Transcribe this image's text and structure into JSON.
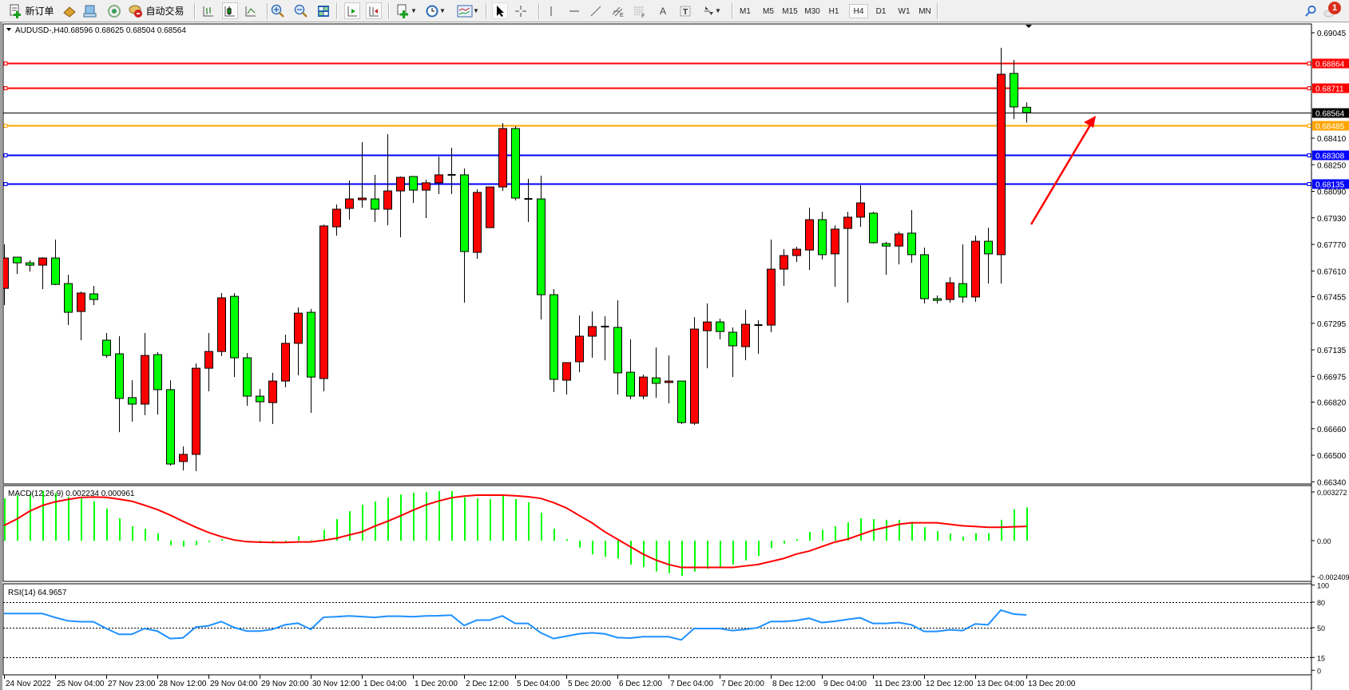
{
  "toolbar": {
    "new_order_label": "新订单",
    "auto_trade_label": "自动交易",
    "timeframes": [
      "M1",
      "M5",
      "M15",
      "M30",
      "H1",
      "H4",
      "D1",
      "W1",
      "MN"
    ],
    "active_timeframe": "H4",
    "fibo_channel_letter": "E",
    "fibo_letter": "F",
    "text_tool_letter": "A",
    "text_label_letter": "T",
    "notification_count": "1"
  },
  "chart": {
    "symbol_header": "AUDUSD-,H4",
    "ohlc_header": "0.68596 0.68625 0.68504 0.68564"
  },
  "chart_data": {
    "type": "candlestick",
    "bull_color": "#ff0000",
    "bear_color": "#00ff00",
    "candles_ohlc": [
      [
        0.67505,
        0.6777,
        0.67404,
        0.67688
      ],
      [
        0.67693,
        0.67693,
        0.67592,
        0.67659
      ],
      [
        0.67659,
        0.67674,
        0.67606,
        0.67645
      ],
      [
        0.67645,
        0.67693,
        0.67501,
        0.67688
      ],
      [
        0.67688,
        0.67799,
        0.67525,
        0.67529
      ],
      [
        0.67534,
        0.67587,
        0.67284,
        0.67361
      ],
      [
        0.67366,
        0.67486,
        0.67193,
        0.67477
      ],
      [
        0.67472,
        0.6752,
        0.67404,
        0.67438
      ],
      [
        0.67193,
        0.67236,
        0.67087,
        0.67101
      ],
      [
        0.67111,
        0.67217,
        0.66639,
        0.66842
      ],
      [
        0.66847,
        0.66952,
        0.66702,
        0.66808
      ],
      [
        0.66808,
        0.67236,
        0.66741,
        0.67101
      ],
      [
        0.67106,
        0.67121,
        0.66745,
        0.66895
      ],
      [
        0.66895,
        0.66952,
        0.66437,
        0.66447
      ],
      [
        0.66462,
        0.66553,
        0.66409,
        0.66505
      ],
      [
        0.66505,
        0.67053,
        0.66404,
        0.67024
      ],
      [
        0.67024,
        0.67236,
        0.66885,
        0.67125
      ],
      [
        0.67125,
        0.67477,
        0.67097,
        0.67448
      ],
      [
        0.67457,
        0.67477,
        0.66971,
        0.67087
      ],
      [
        0.67087,
        0.67116,
        0.66798,
        0.66856
      ],
      [
        0.66856,
        0.66899,
        0.66702,
        0.66822
      ],
      [
        0.66817,
        0.66996,
        0.66688,
        0.66947
      ],
      [
        0.66947,
        0.67226,
        0.66909,
        0.67174
      ],
      [
        0.67174,
        0.6739,
        0.66981,
        0.67356
      ],
      [
        0.67361,
        0.67381,
        0.66755,
        0.66971
      ],
      [
        0.66962,
        0.6789,
        0.66885,
        0.67881
      ],
      [
        0.67876,
        0.68011,
        0.67823,
        0.67982
      ],
      [
        0.67987,
        0.68155,
        0.67919,
        0.68044
      ],
      [
        0.68039,
        0.68386,
        0.67991,
        0.68049
      ],
      [
        0.68044,
        0.68189,
        0.67905,
        0.67982
      ],
      [
        0.67982,
        0.68434,
        0.67885,
        0.68092
      ],
      [
        0.68092,
        0.68179,
        0.67813,
        0.68174
      ],
      [
        0.68179,
        0.68179,
        0.6802,
        0.68097
      ],
      [
        0.68097,
        0.6816,
        0.67929,
        0.68141
      ],
      [
        0.68141,
        0.68299,
        0.68073,
        0.68189
      ],
      [
        0.68189,
        0.68352,
        0.68073,
        0.68189
      ],
      [
        0.68189,
        0.68227,
        0.67419,
        0.67727
      ],
      [
        0.67722,
        0.68102,
        0.67683,
        0.68083
      ],
      [
        0.67871,
        0.68116,
        0.67871,
        0.68116
      ],
      [
        0.68116,
        0.68501,
        0.68092,
        0.68468
      ],
      [
        0.68468,
        0.68482,
        0.68035,
        0.68049
      ],
      [
        0.68044,
        0.68165,
        0.67905,
        0.68044
      ],
      [
        0.68044,
        0.68184,
        0.67318,
        0.67467
      ],
      [
        0.67467,
        0.67501,
        0.6688,
        0.66957
      ],
      [
        0.66952,
        0.67058,
        0.66866,
        0.67058
      ],
      [
        0.67063,
        0.67342,
        0.67,
        0.67217
      ],
      [
        0.67217,
        0.67366,
        0.67087,
        0.67275
      ],
      [
        0.67275,
        0.67337,
        0.67072,
        0.67275
      ],
      [
        0.6727,
        0.67433,
        0.66866,
        0.66996
      ],
      [
        0.67,
        0.67198,
        0.66837,
        0.66856
      ],
      [
        0.66856,
        0.66986,
        0.66837,
        0.66971
      ],
      [
        0.66966,
        0.67149,
        0.66846,
        0.66933
      ],
      [
        0.66938,
        0.67101,
        0.66813,
        0.66947
      ],
      [
        0.66947,
        0.66947,
        0.66688,
        0.66697
      ],
      [
        0.66693,
        0.67332,
        0.66683,
        0.6726
      ],
      [
        0.6725,
        0.67414,
        0.67024,
        0.67303
      ],
      [
        0.67303,
        0.67323,
        0.67198,
        0.67245
      ],
      [
        0.67241,
        0.6727,
        0.66971,
        0.67159
      ],
      [
        0.67154,
        0.67376,
        0.67072,
        0.67289
      ],
      [
        0.67284,
        0.67313,
        0.67111,
        0.67284
      ],
      [
        0.67284,
        0.67799,
        0.67241,
        0.67621
      ],
      [
        0.67621,
        0.67741,
        0.6752,
        0.67703
      ],
      [
        0.67703,
        0.67756,
        0.67664,
        0.67741
      ],
      [
        0.67736,
        0.67991,
        0.67616,
        0.67919
      ],
      [
        0.67919,
        0.67967,
        0.67679,
        0.67708
      ],
      [
        0.67713,
        0.67885,
        0.67515,
        0.67862
      ],
      [
        0.67866,
        0.67967,
        0.67419,
        0.67934
      ],
      [
        0.67934,
        0.68126,
        0.67876,
        0.6802
      ],
      [
        0.67958,
        0.67967,
        0.67775,
        0.6778
      ],
      [
        0.67775,
        0.67785,
        0.67587,
        0.6776
      ],
      [
        0.6776,
        0.67847,
        0.6765,
        0.67833
      ],
      [
        0.67838,
        0.67977,
        0.67659,
        0.67708
      ],
      [
        0.67708,
        0.67751,
        0.67414,
        0.67443
      ],
      [
        0.67443,
        0.67462,
        0.67414,
        0.67433
      ],
      [
        0.67438,
        0.67573,
        0.67419,
        0.67539
      ],
      [
        0.67534,
        0.6777,
        0.67419,
        0.67453
      ],
      [
        0.67453,
        0.67823,
        0.67424,
        0.67789
      ],
      [
        0.67789,
        0.67871,
        0.67534,
        0.67713
      ],
      [
        0.67708,
        0.68954,
        0.67534,
        0.68795
      ],
      [
        0.688,
        0.68881,
        0.68525,
        0.68598
      ],
      [
        0.68596,
        0.68625,
        0.68504,
        0.68564
      ]
    ],
    "price_axis_ticks": [
      "0.69045",
      "0.68410",
      "0.68250",
      "0.68090",
      "0.67930",
      "0.67770",
      "0.67610",
      "0.67455",
      "0.67295",
      "0.67135",
      "0.66975",
      "0.66820",
      "0.66660",
      "0.66500",
      "0.66340"
    ],
    "levels": [
      {
        "price": "0.68864",
        "color": "#ff0000"
      },
      {
        "price": "0.68711",
        "color": "#ff0000"
      },
      {
        "price": "0.68485",
        "color": "#ffa500"
      },
      {
        "price": "0.68308",
        "color": "#0000ff"
      },
      {
        "price": "0.68135",
        "color": "#0000ff"
      }
    ],
    "bid": {
      "price": "0.68564",
      "color": "#000000"
    },
    "arrow_color": "#ff0000",
    "x_labels": [
      "24 Nov 2022",
      "25 Nov 04:00",
      "27 Nov 23:00",
      "28 Nov 12:00",
      "29 Nov 04:00",
      "29 Nov 20:00",
      "30 Nov 12:00",
      "1 Dec 04:00",
      "1 Dec 20:00",
      "2 Dec 12:00",
      "5 Dec 04:00",
      "5 Dec 20:00",
      "6 Dec 12:00",
      "7 Dec 04:00",
      "7 Dec 20:00",
      "8 Dec 12:00",
      "9 Dec 04:00",
      "11 Dec 23:00",
      "12 Dec 12:00",
      "13 Dec 04:00",
      "13 Dec 20:00"
    ],
    "macd": {
      "label": "MACD(12,26,9) 0.002234 0.000961",
      "histogram_color": "#00ff00",
      "signal_color": "#ff0000",
      "axis_labels": [
        "0.003272",
        "0.00",
        "-0.002409"
      ],
      "histogram": [
        0.00284,
        0.00306,
        0.00313,
        0.00335,
        0.00319,
        0.00295,
        0.00283,
        0.00263,
        0.00215,
        0.0015,
        0.00097,
        0.0008,
        0.00048,
        -0.0003,
        -0.0004,
        -0.0003,
        -0.0001,
        0.0001,
        3e-05,
        -0.0001,
        -0.0001,
        -0.0001,
        -0.0001,
        0.0003,
        5e-05,
        0.00073,
        0.00145,
        0.00198,
        0.00241,
        0.00263,
        0.0029,
        0.0031,
        0.00322,
        0.00327,
        0.00333,
        0.00333,
        0.00291,
        0.00284,
        0.00279,
        0.003,
        0.00279,
        0.00257,
        0.00188,
        0.0008,
        0.0001,
        -0.00046,
        -0.00092,
        -0.00109,
        -0.0012,
        -0.00161,
        -0.00178,
        -0.00207,
        -0.00218,
        -0.00236,
        -0.00207,
        -0.00189,
        -0.00178,
        -0.00161,
        -0.00132,
        -0.00103,
        -0.0005,
        -0.0002,
        0.0001,
        0.00059,
        0.00073,
        0.00097,
        0.00123,
        0.0015,
        0.00145,
        0.0014,
        0.0014,
        0.00127,
        0.00091,
        0.00064,
        0.00048,
        0.00027,
        0.0005,
        0.0005,
        0.0014,
        0.0021,
        0.002234
      ],
      "signal": [
        0.00102,
        0.00145,
        0.00198,
        0.00236,
        0.00261,
        0.00277,
        0.0029,
        0.00293,
        0.00291,
        0.00279,
        0.00265,
        0.00238,
        0.00209,
        0.00172,
        0.0013,
        0.00091,
        0.00055,
        0.00027,
        5e-05,
        -7e-05,
        -0.0001,
        -0.00012,
        -0.00012,
        -9e-05,
        -9e-05,
        2e-05,
        0.00016,
        0.00038,
        0.00059,
        0.00097,
        0.0013,
        0.00166,
        0.00204,
        0.0024,
        0.00266,
        0.00288,
        0.00299,
        0.00306,
        0.00306,
        0.00306,
        0.00302,
        0.00295,
        0.00284,
        0.00256,
        0.0022,
        0.0017,
        0.0012,
        0.0006,
        0.0001,
        -0.0004,
        -0.0009,
        -0.0013,
        -0.0016,
        -0.0018,
        -0.0018,
        -0.0018,
        -0.0018,
        -0.0018,
        -0.0017,
        -0.0016,
        -0.0014,
        -0.0012,
        -0.0009,
        -0.0007,
        -0.0004,
        -0.0001,
        0.0001,
        0.0004,
        0.0007,
        0.0009,
        0.0011,
        0.0012,
        0.0012,
        0.0012,
        0.0011,
        0.001,
        0.00095,
        0.0009,
        0.0009,
        0.00093,
        0.000961
      ]
    },
    "rsi": {
      "label": "RSI(14) 64.9657",
      "color": "#1e90ff",
      "levels": [
        80,
        50,
        15
      ],
      "axis_labels": [
        "100",
        "80",
        "50",
        "15",
        "0"
      ],
      "values": [
        66.6,
        66.6,
        66.6,
        66.6,
        62,
        58,
        57,
        57,
        49,
        42.2,
        42.2,
        49,
        46,
        37.2,
        38,
        50.6,
        52.2,
        57.2,
        50.3,
        46,
        46,
        48,
        53.4,
        55.3,
        48,
        62.2,
        62.8,
        63.8,
        63,
        62,
        63.4,
        63.4,
        62.8,
        63.8,
        64,
        64.7,
        52.5,
        58.8,
        58.8,
        63.8,
        55,
        55,
        44,
        37.2,
        40,
        42.8,
        44,
        42.8,
        38.4,
        37.8,
        39.4,
        39.4,
        39.4,
        35.6,
        49,
        49,
        49,
        46.6,
        48,
        50,
        57.2,
        57.2,
        58.4,
        61,
        56,
        57.5,
        59.7,
        61.6,
        55,
        55,
        56,
        53.4,
        45.6,
        45.6,
        47.5,
        46.6,
        54.4,
        53.4,
        70.6,
        66,
        64.97
      ]
    }
  }
}
